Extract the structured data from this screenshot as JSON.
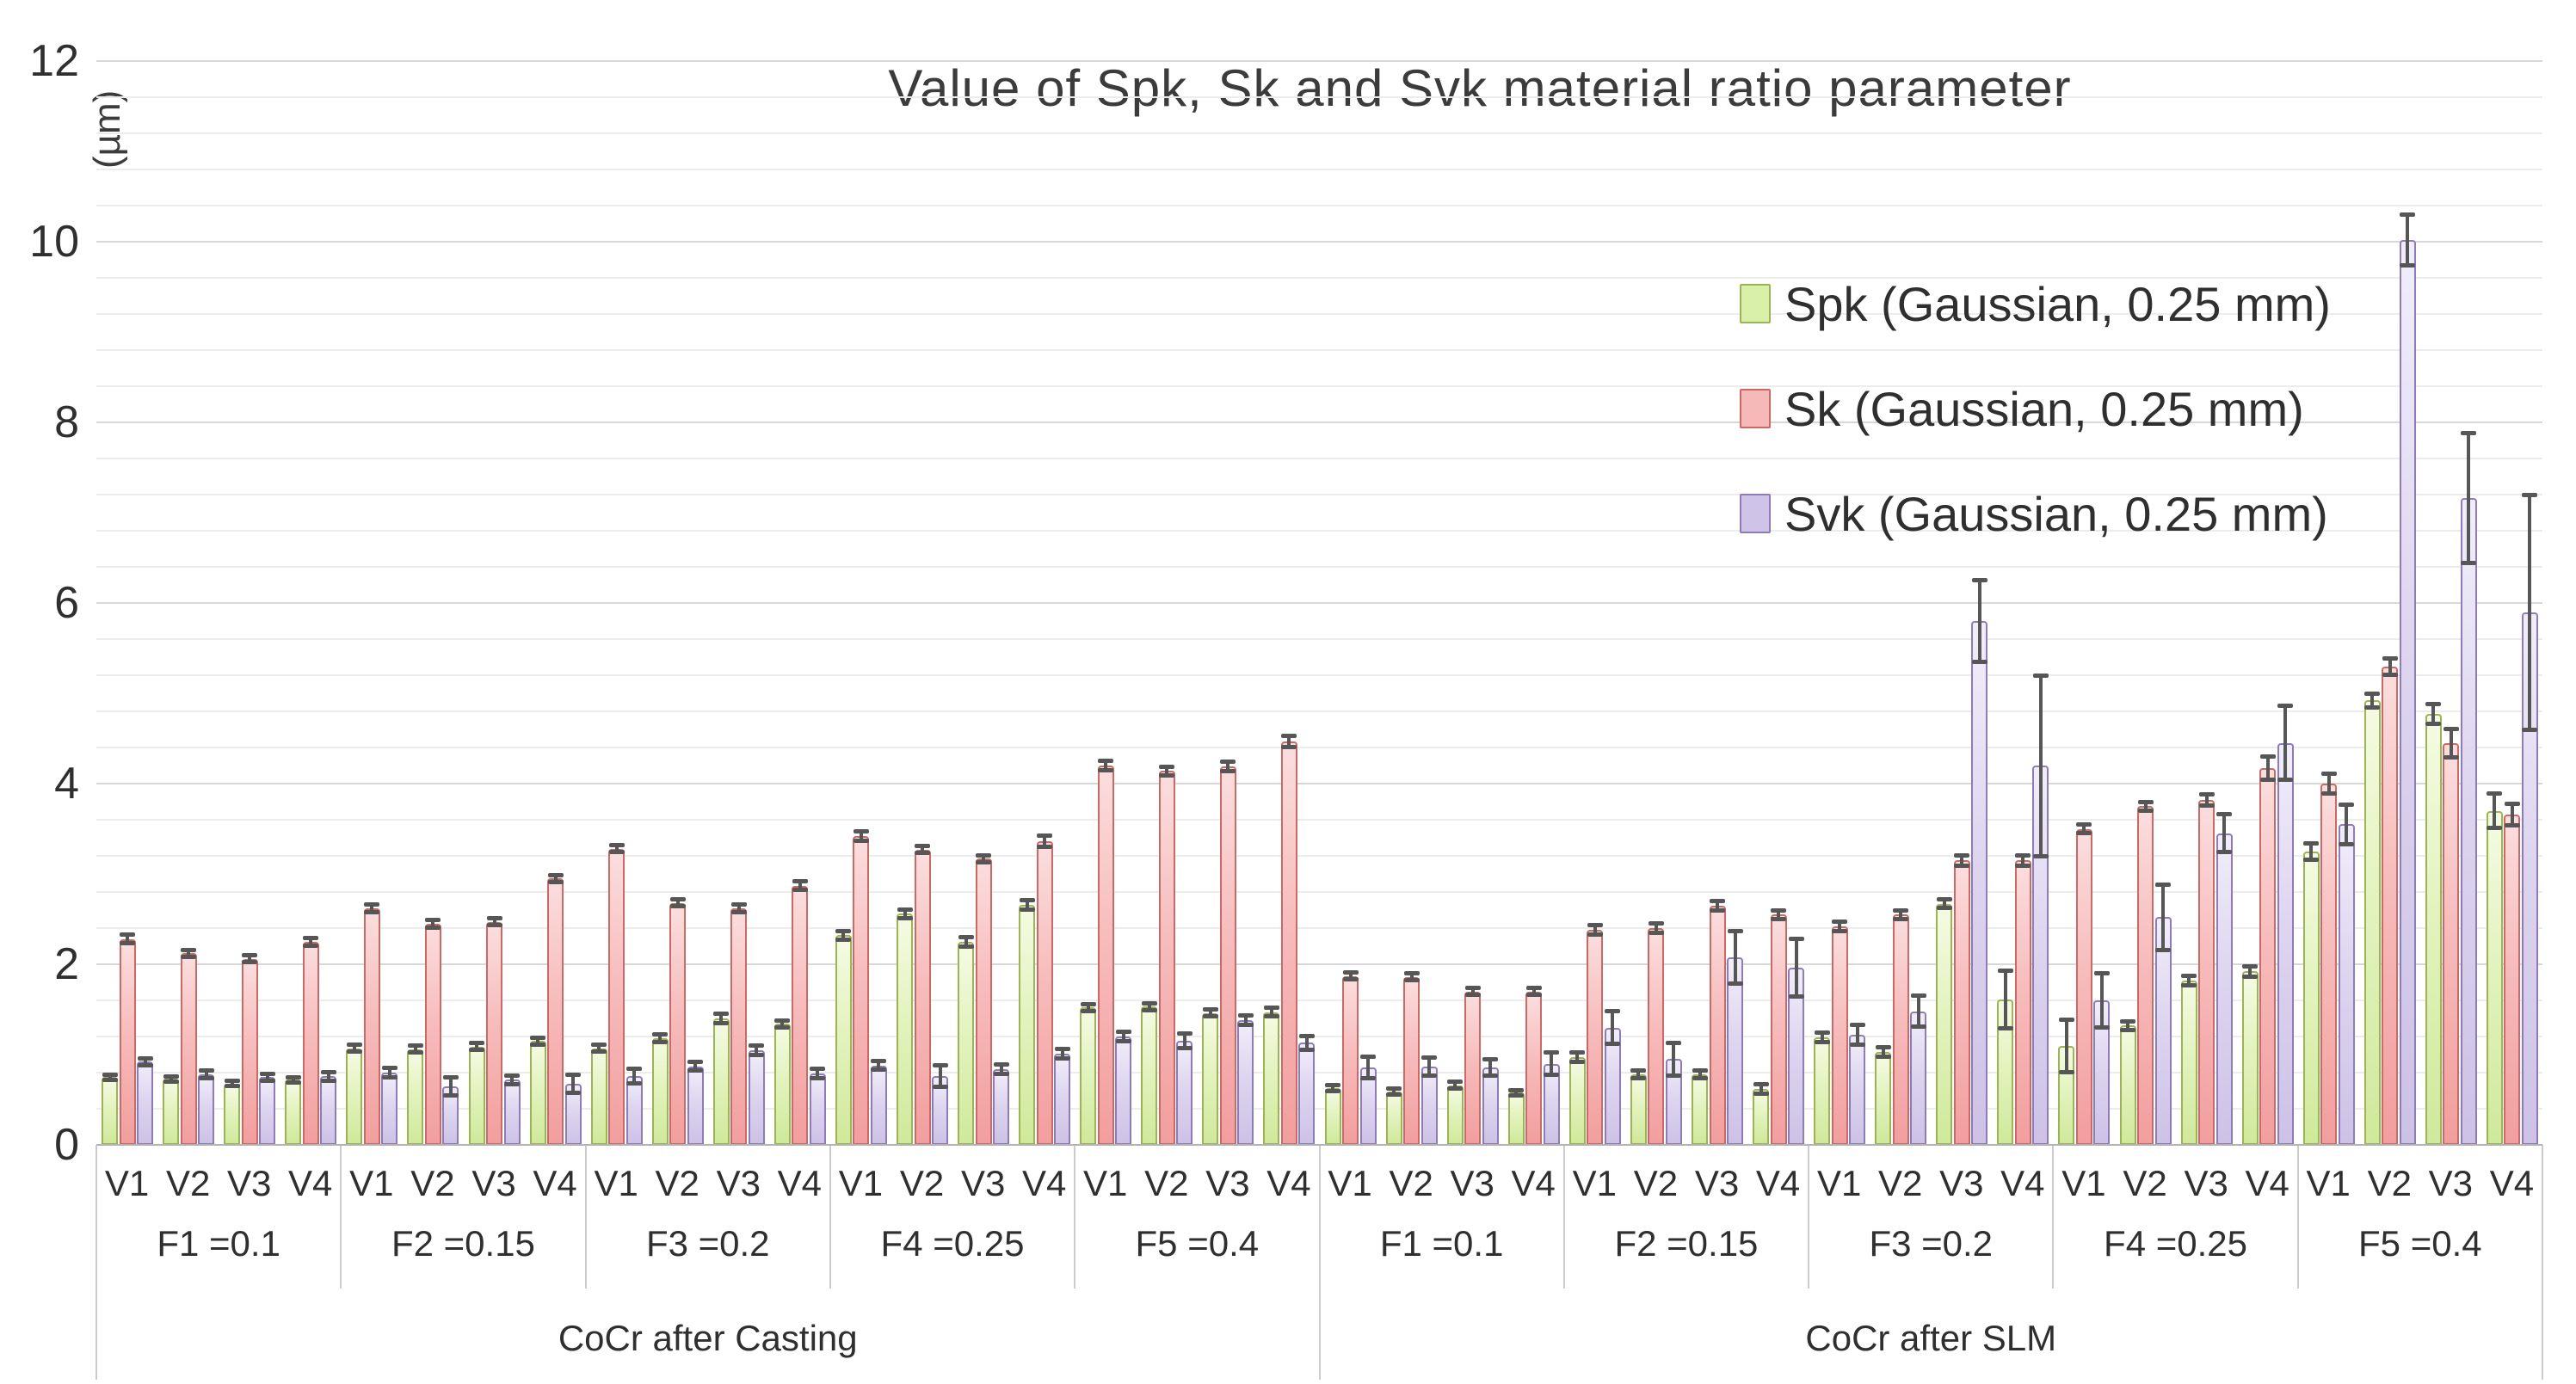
{
  "title": "Value of Spk, Sk and Svk material ratio parameter",
  "y_axis": {
    "unit_label": "(µm)",
    "ticks": [
      0,
      2,
      4,
      6,
      8,
      10,
      12
    ],
    "max": 12
  },
  "legend": [
    {
      "label": "Spk (Gaussian, 0.25 mm)"
    },
    {
      "label": "Sk (Gaussian, 0.25 mm)"
    },
    {
      "label": "Svk (Gaussian, 0.25 mm)"
    }
  ],
  "chart_data": {
    "type": "bar",
    "title": "Value of Spk, Sk and Svk material ratio parameter",
    "ylabel": "(µm)",
    "ylim": [
      0,
      12
    ],
    "major_grid_step": 2,
    "minor_grid_step": 0.4,
    "legend_position": "upper right",
    "series": [
      "Spk (Gaussian, 0.25 mm)",
      "Sk (Gaussian, 0.25 mm)",
      "Svk (Gaussian, 0.25 mm)"
    ],
    "series_colors": [
      {
        "name": "Spk",
        "fill": "#d9f0a8",
        "border": "#9cb356"
      },
      {
        "name": "Sk",
        "fill": "#f6b9b7",
        "border": "#c96a66"
      },
      {
        "name": "Svk",
        "fill": "#cfc4e7",
        "border": "#8f7bb8"
      }
    ],
    "error_bar_color": "#565656",
    "variant_labels": [
      "V1",
      "V2",
      "V3",
      "V4"
    ],
    "materials": [
      {
        "label": "CoCr after Casting",
        "factors": [
          {
            "label": "F1 =0.1",
            "values": [
              [
                0.75,
                2.28,
                0.92
              ],
              [
                0.73,
                2.12,
                0.78
              ],
              [
                0.68,
                2.06,
                0.75
              ],
              [
                0.72,
                2.25,
                0.76
              ]
            ],
            "errors": [
              [
                0.03,
                0.05,
                0.04
              ],
              [
                0.03,
                0.04,
                0.04
              ],
              [
                0.03,
                0.04,
                0.04
              ],
              [
                0.03,
                0.04,
                0.05
              ]
            ]
          },
          {
            "label": "F2 =0.15",
            "values": [
              [
                1.07,
                2.62,
                0.8
              ],
              [
                1.06,
                2.45,
                0.65
              ],
              [
                1.09,
                2.47,
                0.72
              ],
              [
                1.15,
                2.95,
                0.68
              ]
            ],
            "errors": [
              [
                0.04,
                0.04,
                0.05
              ],
              [
                0.04,
                0.04,
                0.1
              ],
              [
                0.04,
                0.04,
                0.05
              ],
              [
                0.04,
                0.04,
                0.1
              ]
            ]
          },
          {
            "label": "F3 =0.2",
            "values": [
              [
                1.07,
                3.28,
                0.76
              ],
              [
                1.18,
                2.68,
                0.87
              ],
              [
                1.4,
                2.62,
                1.05
              ],
              [
                1.34,
                2.87,
                0.79
              ]
            ],
            "errors": [
              [
                0.04,
                0.04,
                0.08
              ],
              [
                0.04,
                0.04,
                0.05
              ],
              [
                0.05,
                0.04,
                0.05
              ],
              [
                0.04,
                0.05,
                0.05
              ]
            ]
          },
          {
            "label": "F4 =0.25",
            "values": [
              [
                2.32,
                3.42,
                0.88
              ],
              [
                2.56,
                3.27,
                0.76
              ],
              [
                2.25,
                3.17,
                0.84
              ],
              [
                2.66,
                3.36,
                1.01
              ]
            ],
            "errors": [
              [
                0.05,
                0.05,
                0.05
              ],
              [
                0.05,
                0.04,
                0.12
              ],
              [
                0.05,
                0.04,
                0.05
              ],
              [
                0.05,
                0.06,
                0.05
              ]
            ]
          },
          {
            "label": "F5 =0.4",
            "values": [
              [
                1.52,
                4.2,
                1.2
              ],
              [
                1.53,
                4.14,
                1.15
              ],
              [
                1.46,
                4.19,
                1.38
              ],
              [
                1.47,
                4.47,
                1.13
              ]
            ],
            "errors": [
              [
                0.04,
                0.05,
                0.05
              ],
              [
                0.04,
                0.05,
                0.08
              ],
              [
                0.04,
                0.05,
                0.05
              ],
              [
                0.05,
                0.06,
                0.08
              ]
            ]
          }
        ]
      },
      {
        "label": "CoCr after SLM",
        "factors": [
          {
            "label": "F1 =0.1",
            "values": [
              [
                0.63,
                1.87,
                0.86
              ],
              [
                0.59,
                1.86,
                0.87
              ],
              [
                0.66,
                1.7,
                0.86
              ],
              [
                0.58,
                1.7,
                0.9
              ]
            ],
            "errors": [
              [
                0.03,
                0.04,
                0.12
              ],
              [
                0.03,
                0.04,
                0.1
              ],
              [
                0.04,
                0.04,
                0.09
              ],
              [
                0.03,
                0.04,
                0.12
              ]
            ]
          },
          {
            "label": "F2 =0.15",
            "values": [
              [
                0.97,
                2.38,
                1.3
              ],
              [
                0.78,
                2.4,
                0.95
              ],
              [
                0.78,
                2.65,
                2.08
              ],
              [
                0.62,
                2.55,
                1.96
              ]
            ],
            "errors": [
              [
                0.05,
                0.05,
                0.18
              ],
              [
                0.04,
                0.05,
                0.18
              ],
              [
                0.04,
                0.05,
                0.29
              ],
              [
                0.05,
                0.05,
                0.32
              ]
            ]
          },
          {
            "label": "F3 =0.2",
            "values": [
              [
                1.19,
                2.42,
                1.22
              ],
              [
                1.03,
                2.55,
                1.48
              ],
              [
                2.67,
                3.15,
                5.8
              ],
              [
                1.61,
                3.15,
                4.2
              ]
            ],
            "errors": [
              [
                0.05,
                0.05,
                0.11
              ],
              [
                0.05,
                0.05,
                0.17
              ],
              [
                0.05,
                0.06,
                0.45
              ],
              [
                0.32,
                0.06,
                1.0
              ]
            ]
          },
          {
            "label": "F4 =0.25",
            "values": [
              [
                1.1,
                3.5,
                1.6
              ],
              [
                1.32,
                3.75,
                2.52
              ],
              [
                1.82,
                3.82,
                3.45
              ],
              [
                1.92,
                4.17,
                4.45
              ]
            ],
            "errors": [
              [
                0.29,
                0.05,
                0.3
              ],
              [
                0.05,
                0.05,
                0.36
              ],
              [
                0.05,
                0.06,
                0.21
              ],
              [
                0.06,
                0.13,
                0.41
              ]
            ]
          },
          {
            "label": "F5 =0.4",
            "values": [
              [
                3.25,
                4.0,
                3.55
              ],
              [
                4.92,
                5.3,
                10.02
              ],
              [
                4.77,
                4.45,
                7.16
              ],
              [
                3.7,
                3.66,
                5.9
              ]
            ],
            "errors": [
              [
                0.09,
                0.11,
                0.22
              ],
              [
                0.08,
                0.09,
                0.28
              ],
              [
                0.11,
                0.16,
                0.72
              ],
              [
                0.19,
                0.12,
                1.3
              ]
            ]
          }
        ]
      }
    ]
  }
}
